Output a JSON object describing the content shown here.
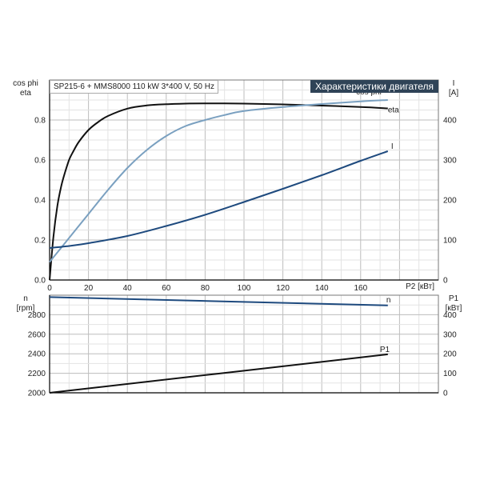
{
  "chart_data": [
    {
      "type": "line",
      "title": "SP215-6 + MMS8000   110 kW   3*400 V, 50 Hz",
      "header": "Характеристики двигателя",
      "xlabel": "P2 [кВт]",
      "ylabel_left": [
        "cos phi",
        "eta"
      ],
      "ylabel_right": [
        "I",
        "[A]"
      ],
      "xlim": [
        0,
        200
      ],
      "ylim_left": [
        0,
        1.0
      ],
      "ylim_right": [
        0,
        500
      ],
      "x_ticks": [
        0,
        20,
        40,
        60,
        80,
        100,
        120,
        140,
        160
      ],
      "y_left_ticks": [
        "0.0",
        "0.2",
        "0.4",
        "0.6",
        "0.8"
      ],
      "y_right_ticks": [
        0,
        100,
        200,
        300,
        400
      ],
      "grid": true,
      "series": [
        {
          "name": "eta",
          "axis": "left",
          "color": "#111111",
          "x": [
            0,
            2,
            4,
            6,
            8,
            10,
            12,
            15,
            20,
            25,
            30,
            40,
            50,
            60,
            70,
            80,
            90,
            100,
            120,
            140,
            160,
            174
          ],
          "y": [
            0.0,
            0.22,
            0.37,
            0.47,
            0.54,
            0.6,
            0.64,
            0.69,
            0.75,
            0.79,
            0.82,
            0.857,
            0.873,
            0.879,
            0.882,
            0.883,
            0.883,
            0.882,
            0.878,
            0.872,
            0.865,
            0.858
          ]
        },
        {
          "name": "cos phi",
          "axis": "left",
          "color": "#7aa0c0",
          "x": [
            0,
            5,
            10,
            20,
            30,
            40,
            50,
            60,
            70,
            80,
            90,
            100,
            120,
            140,
            160,
            174
          ],
          "y": [
            0.09,
            0.15,
            0.21,
            0.33,
            0.45,
            0.56,
            0.65,
            0.72,
            0.77,
            0.8,
            0.825,
            0.845,
            0.865,
            0.88,
            0.893,
            0.9
          ]
        },
        {
          "name": "I",
          "axis": "right",
          "color": "#1e4a7e",
          "x": [
            0,
            10,
            20,
            40,
            60,
            80,
            100,
            120,
            140,
            160,
            174
          ],
          "y": [
            80,
            85,
            92,
            110,
            135,
            163,
            195,
            228,
            262,
            298,
            322
          ]
        }
      ]
    },
    {
      "type": "line",
      "xlim": [
        0,
        200
      ],
      "ylabel_left": [
        "n",
        "[rpm]"
      ],
      "ylabel_right": [
        "P1",
        "[кВт]"
      ],
      "ylim_left": [
        2000,
        3000
      ],
      "ylim_right": [
        0,
        500
      ],
      "y_left_ticks": [
        2000,
        2200,
        2400,
        2600,
        2800
      ],
      "y_right_ticks": [
        0,
        100,
        200,
        300,
        400
      ],
      "grid": true,
      "series": [
        {
          "name": "n",
          "axis": "left",
          "color": "#1e4a7e",
          "x": [
            0,
            174
          ],
          "y": [
            2980,
            2895
          ]
        },
        {
          "name": "P1",
          "axis": "right",
          "color": "#111111",
          "x": [
            0,
            174
          ],
          "y": [
            0,
            197
          ]
        }
      ]
    }
  ]
}
